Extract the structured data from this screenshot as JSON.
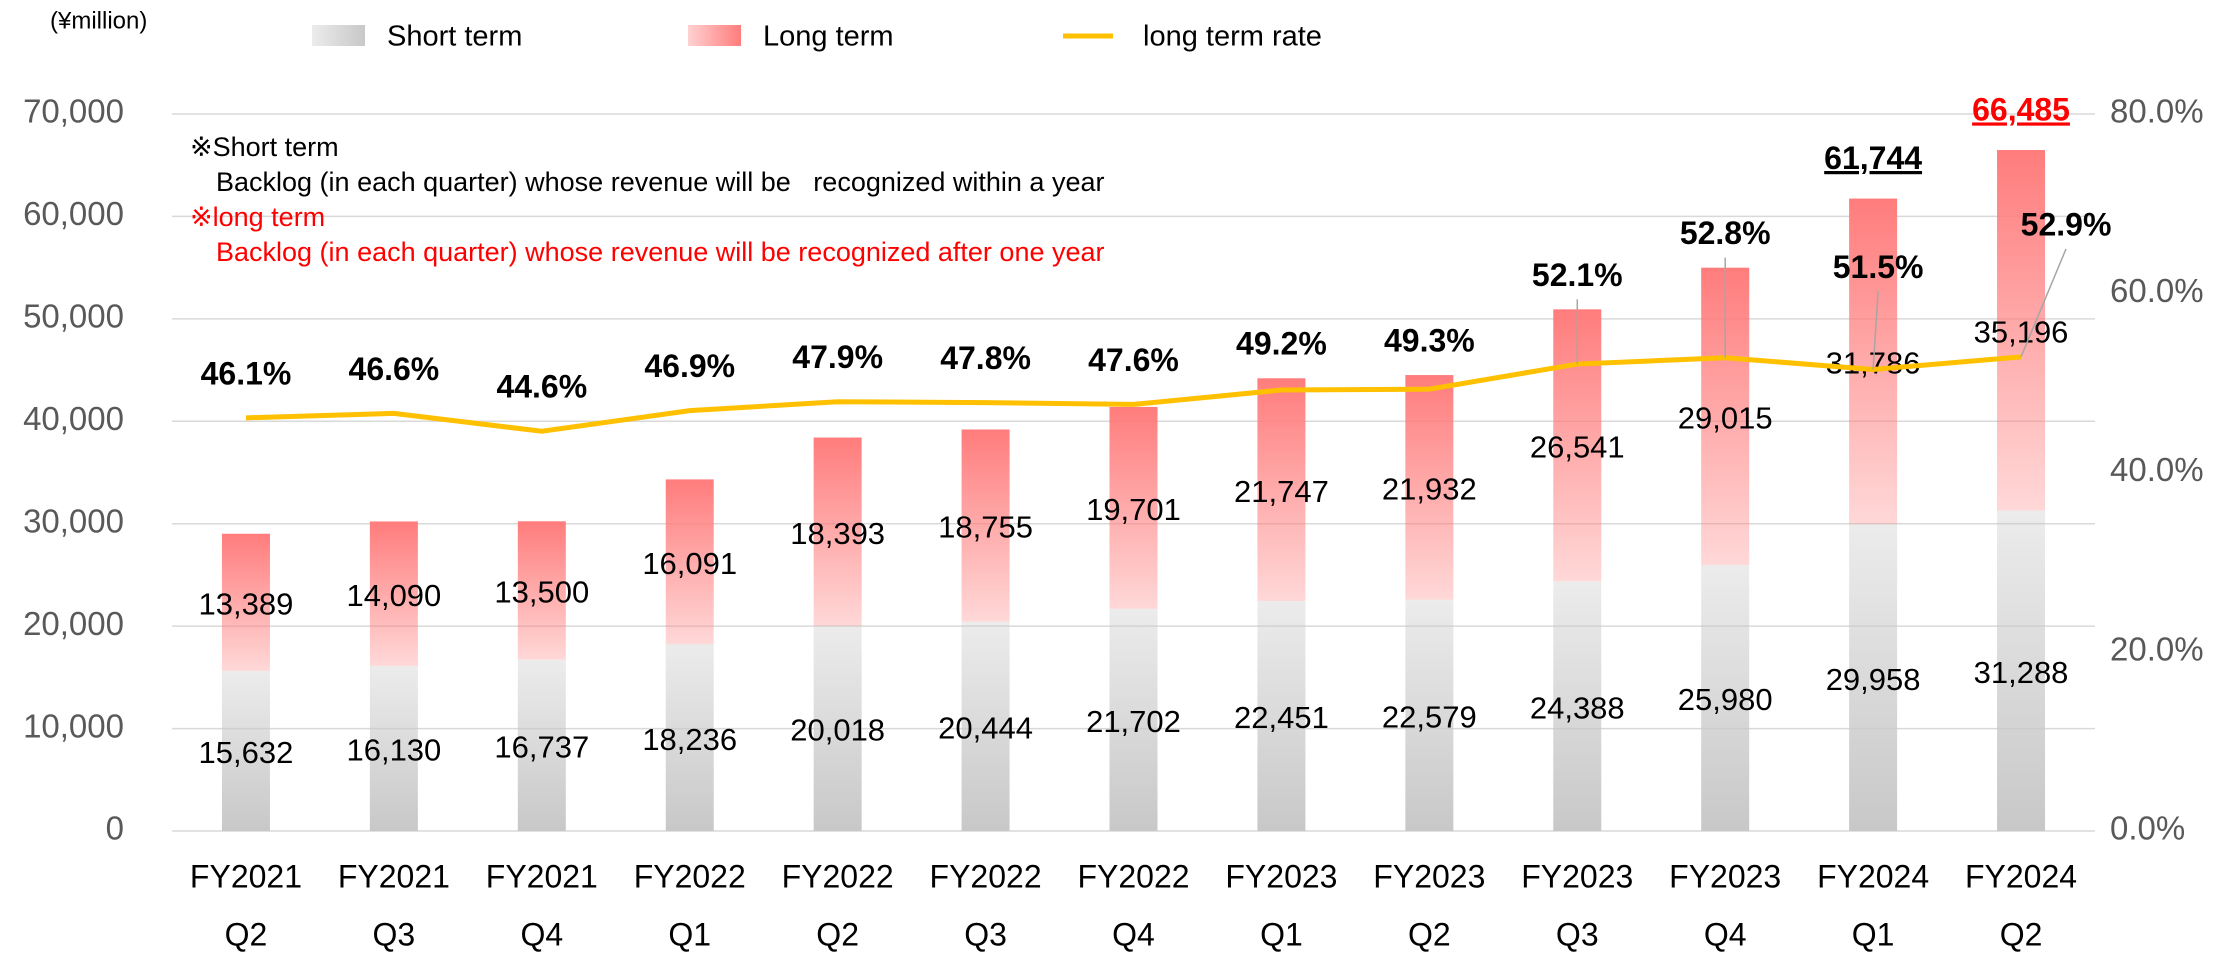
{
  "chart_data": {
    "type": "stacked_bar_line",
    "y_axis_label": "(¥million)",
    "categories": [
      [
        "FY2021",
        "Q2"
      ],
      [
        "FY2021",
        "Q3"
      ],
      [
        "FY2021",
        "Q4"
      ],
      [
        "FY2022",
        "Q1"
      ],
      [
        "FY2022",
        "Q2"
      ],
      [
        "FY2022",
        "Q3"
      ],
      [
        "FY2022",
        "Q4"
      ],
      [
        "FY2023",
        "Q1"
      ],
      [
        "FY2023",
        "Q2"
      ],
      [
        "FY2023",
        "Q3"
      ],
      [
        "FY2023",
        "Q4"
      ],
      [
        "FY2024",
        "Q1"
      ],
      [
        "FY2024",
        "Q2"
      ]
    ],
    "series": [
      {
        "name": "Short term",
        "color": "#c8c8c8",
        "values": [
          15632,
          16130,
          16737,
          18236,
          20018,
          20444,
          21702,
          22451,
          22579,
          24388,
          25980,
          29958,
          31288
        ],
        "value_labels": [
          "15,632",
          "16,130",
          "16,737",
          "18,236",
          "20,018",
          "20,444",
          "21,702",
          "22,451",
          "22,579",
          "24,388",
          "25,980",
          "29,958",
          "31,288"
        ]
      },
      {
        "name": "Long term",
        "color": "#ff7c7c",
        "values": [
          13389,
          14090,
          13500,
          16091,
          18393,
          18755,
          19701,
          21747,
          21932,
          26541,
          29015,
          31786,
          35196
        ],
        "value_labels": [
          "13,389",
          "14,090",
          "13,500",
          "16,091",
          "18,393",
          "18,755",
          "19,701",
          "21,747",
          "21,932",
          "26,541",
          "29,015",
          "31,786",
          "35,196"
        ]
      },
      {
        "name": "long term rate",
        "color": "#ffc000",
        "axis": "y2",
        "values": [
          46.1,
          46.6,
          44.6,
          46.9,
          47.9,
          47.8,
          47.6,
          49.2,
          49.3,
          52.1,
          52.8,
          51.5,
          52.9
        ],
        "value_labels": [
          "46.1%",
          "46.6%",
          "44.6%",
          "46.9%",
          "47.9%",
          "47.8%",
          "47.6%",
          "49.2%",
          "49.3%",
          "52.1%",
          "52.8%",
          "51.5%",
          "52.9%"
        ]
      }
    ],
    "total_labels": [
      null,
      null,
      null,
      null,
      null,
      null,
      null,
      null,
      null,
      null,
      null,
      "61,744",
      "66,485"
    ],
    "total_label_colors": [
      null,
      null,
      null,
      null,
      null,
      null,
      null,
      null,
      null,
      null,
      null,
      "#000000",
      "#ff0000"
    ],
    "notes": [
      {
        "text": "※Short term",
        "color": "#000000"
      },
      {
        "text": "Backlog (in each quarter) whose revenue will be   recognized within a year",
        "color": "#000000"
      },
      {
        "text": "※long term",
        "color": "#ff0000"
      },
      {
        "text": "Backlog (in each quarter) whose revenue will be recognized after one year",
        "color": "#ff0000"
      }
    ],
    "ylim": [
      0,
      70000
    ],
    "yticks": [
      0,
      {
        "value": 10000,
        "label": "10,000"
      },
      {
        "value": 20000,
        "label": "20,000"
      },
      {
        "value": 30000,
        "label": "30,000"
      },
      {
        "value": 40000,
        "label": "40,000"
      },
      {
        "value": 50000,
        "label": "50,000"
      },
      {
        "value": 60000,
        "label": "60,000"
      },
      {
        "value": 70000,
        "label": "70,000"
      }
    ],
    "y2lim": [
      0,
      80
    ],
    "y2ticks": [
      {
        "value": 0,
        "label": "0.0%"
      },
      {
        "value": 20,
        "label": "20.0%"
      },
      {
        "value": 40,
        "label": "40.0%"
      },
      {
        "value": 60,
        "label": "60.0%"
      },
      {
        "value": 80,
        "label": "80.0%"
      }
    ],
    "grid": true
  }
}
